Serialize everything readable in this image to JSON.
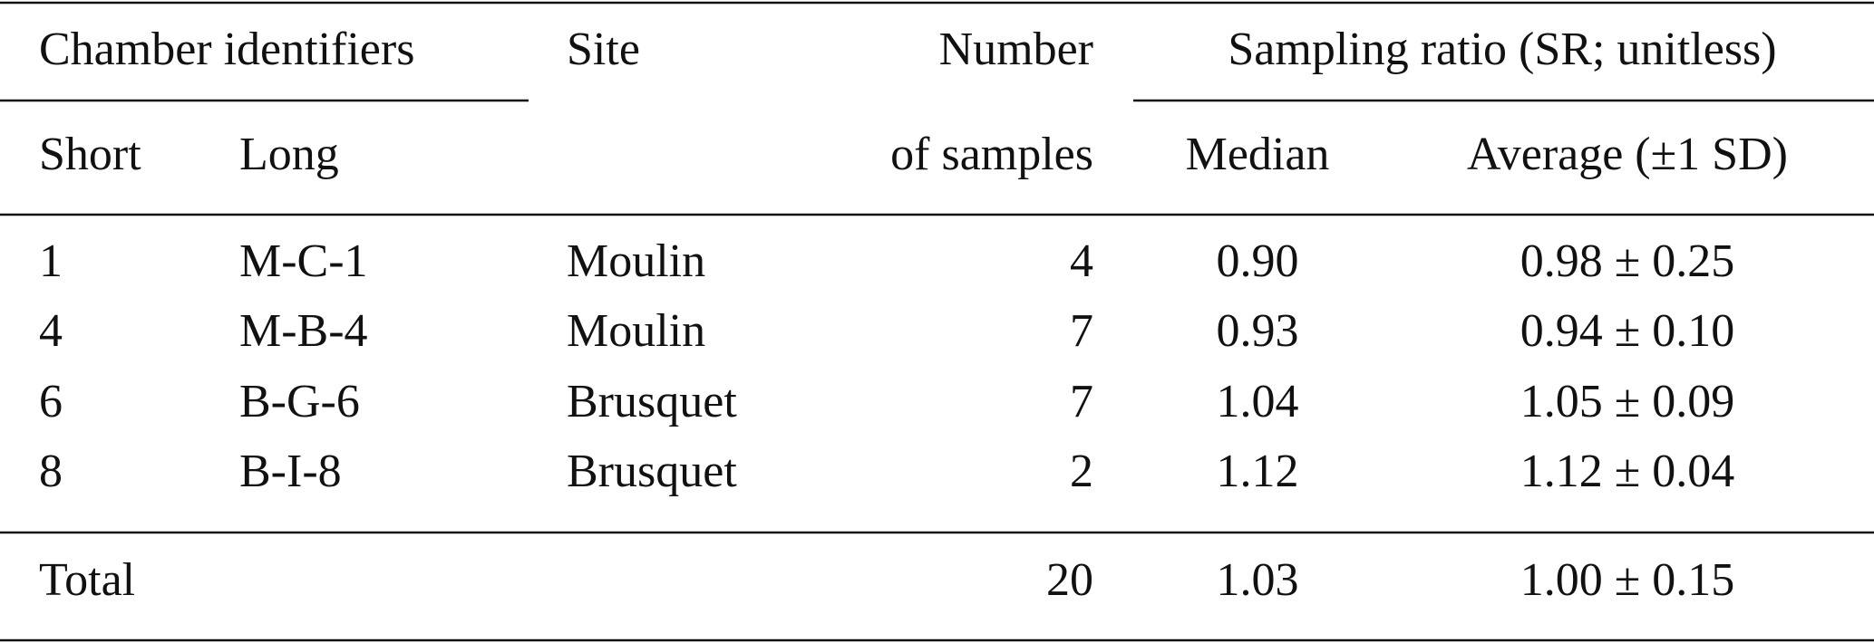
{
  "header": {
    "group_1": "Chamber identifiers",
    "site": "Site",
    "number_line_1": "Number",
    "group_2": "Sampling ratio (SR; unitless)",
    "short": "Short",
    "long": "Long",
    "number_line_2": "of samples",
    "median": "Median",
    "average": "Average (±1 SD)"
  },
  "rows": [
    [
      "1",
      "M-C-1",
      "Moulin",
      "4",
      "0.90",
      "0.98 ± 0.25"
    ],
    [
      "4",
      "M-B-4",
      "Moulin",
      "7",
      "0.93",
      "0.94 ± 0.10"
    ],
    [
      "6",
      "B-G-6",
      "Brusquet",
      "7",
      "1.04",
      "1.05 ± 0.09"
    ],
    [
      "8",
      "B-I-8",
      "Brusquet",
      "2",
      "1.12",
      "1.12 ± 0.04"
    ]
  ],
  "total": [
    "Total",
    "20",
    "1.03",
    "1.00 ± 0.15"
  ]
}
